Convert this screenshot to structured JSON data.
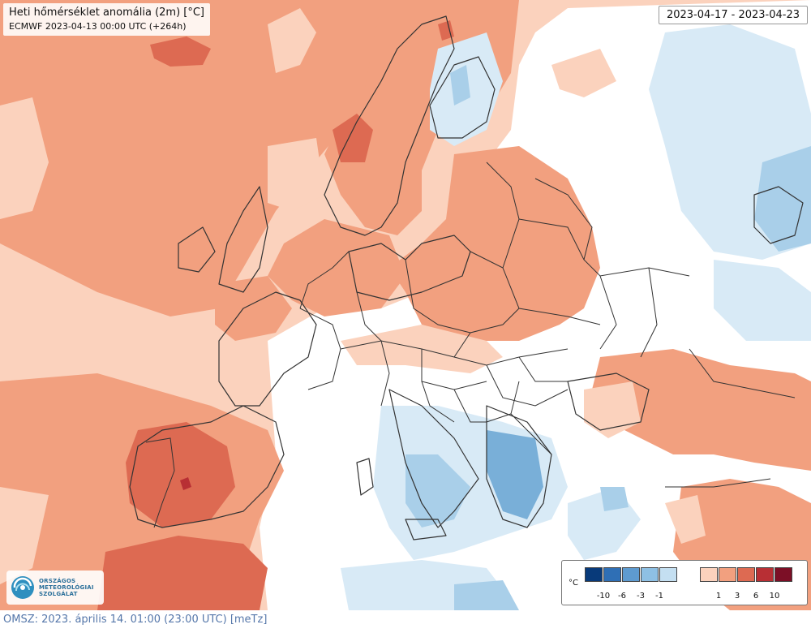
{
  "map": {
    "title": "Heti hőmérséklet anomália (2m) [°C]",
    "subtitle": "ECMWF 2023-04-13 00:00 UTC (+264h)",
    "date_range": "2023-04-17 - 2023-04-23",
    "legend": {
      "unit": "°C",
      "cold_colors": [
        "#083a7a",
        "#2f6fb5",
        "#5e9bd0",
        "#8ec0e4",
        "#c4dff1"
      ],
      "warm_colors": [
        "#fbd2bd",
        "#f2a07f",
        "#dd6a52",
        "#b82f34",
        "#7c0f26"
      ],
      "cold_ticks": [
        "-10",
        "-6",
        "-3",
        "-1"
      ],
      "warm_ticks": [
        "1",
        "3",
        "6",
        "10"
      ]
    },
    "colors": {
      "neutral": "#ffffff",
      "warm_light": "#fbd2bd",
      "warm_mid": "#f2a07f",
      "warm_strong": "#dd6a52",
      "warm_deep": "#b82f34",
      "cold_light": "#d8eaf6",
      "cold_mid": "#a9cfe9",
      "cold_strong": "#79afd8",
      "borders": "#333333"
    },
    "logo": {
      "line1": "ORSZÁGOS",
      "line2": "METEOROLÓGIAI",
      "line3": "SZOLGÁLAT"
    }
  },
  "footer": {
    "text": "OMSZ: 2023. április 14. 01:00 (23:00  UTC)  [meTz]"
  }
}
